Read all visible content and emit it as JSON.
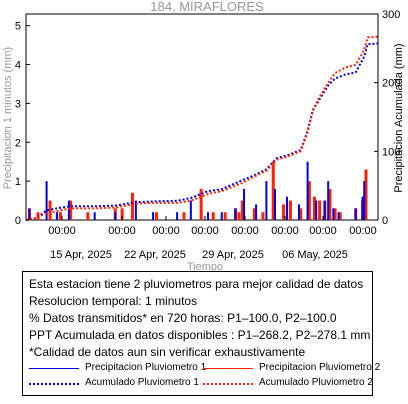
{
  "chart_data": {
    "type": "bar+line",
    "title": "184. MIRAFLORES",
    "xlabel": "Tiempo",
    "ylabel_left": "Precipitacion 1 minutos (mm)",
    "ylabel_right": "Precipitacion Acumulada (mm)",
    "xlim_days": [
      8.5,
      18.75
    ],
    "ylim_left": [
      0,
      5.3
    ],
    "ylim_right": [
      0,
      300
    ],
    "y_ticks_left": [
      "0",
      "1",
      "2",
      "3",
      "4",
      "5"
    ],
    "y_ticks_right": [
      "0",
      "100",
      "200",
      "300"
    ],
    "x_tick_labels_time": [
      "00:00",
      "00:00",
      "00:00",
      "00:00",
      "00:00",
      "00:00",
      "00:00",
      "00:00"
    ],
    "x_tick_labels_date": [
      "15 Apr, 2025",
      "22 Apr, 2025",
      "29 Apr, 2025",
      "06 May, 2025"
    ],
    "series": [
      {
        "name": "Precipitacion Pluviometro 1",
        "color": "#0000dd",
        "bars": [
          [
            8.6,
            0.3
          ],
          [
            9.1,
            1.0
          ],
          [
            9.4,
            0.2
          ],
          [
            9.75,
            0.5
          ],
          [
            10.5,
            0.2
          ],
          [
            11.1,
            0.2
          ],
          [
            11.7,
            0.5
          ],
          [
            12.2,
            0.2
          ],
          [
            12.9,
            0.2
          ],
          [
            13.3,
            0.5
          ],
          [
            13.8,
            0.2
          ],
          [
            14.2,
            0.2
          ],
          [
            14.6,
            0.3
          ],
          [
            14.85,
            0.8
          ],
          [
            15.2,
            0.4
          ],
          [
            15.5,
            1.0
          ],
          [
            15.75,
            0.8
          ],
          [
            16.1,
            0.6
          ],
          [
            16.45,
            0.4
          ],
          [
            16.7,
            1.5
          ],
          [
            16.95,
            0.5
          ],
          [
            17.2,
            0.5
          ],
          [
            17.3,
            1.0
          ],
          [
            17.45,
            0.3
          ],
          [
            17.6,
            0.2
          ],
          [
            18.1,
            0.3
          ],
          [
            18.3,
            0.6
          ],
          [
            18.35,
            1.0
          ]
        ]
      },
      {
        "name": "Precipitacion Pluviometro 2",
        "color": "#ff2200",
        "bars": [
          [
            8.6,
            0.3
          ],
          [
            8.85,
            0.2
          ],
          [
            9.2,
            0.5
          ],
          [
            9.5,
            0.2
          ],
          [
            9.8,
            0.5
          ],
          [
            10.3,
            0.2
          ],
          [
            11.1,
            0.3
          ],
          [
            11.3,
            0.3
          ],
          [
            11.6,
            0.7
          ],
          [
            12.3,
            0.2
          ],
          [
            13.1,
            0.2
          ],
          [
            13.6,
            0.8
          ],
          [
            13.95,
            0.2
          ],
          [
            14.3,
            0.2
          ],
          [
            14.6,
            0.3
          ],
          [
            14.7,
            0.2
          ],
          [
            14.8,
            0.5
          ],
          [
            15.15,
            0.3
          ],
          [
            15.4,
            0.2
          ],
          [
            15.7,
            1.5
          ],
          [
            16.0,
            0.4
          ],
          [
            16.2,
            0.5
          ],
          [
            16.5,
            0.3
          ],
          [
            16.75,
            1.0
          ],
          [
            16.9,
            0.6
          ],
          [
            17.05,
            0.5
          ],
          [
            17.2,
            0.5
          ],
          [
            17.35,
            0.8
          ],
          [
            17.5,
            0.3
          ],
          [
            17.65,
            0.2
          ],
          [
            18.1,
            0.3
          ],
          [
            18.3,
            0.5
          ],
          [
            18.4,
            1.3
          ]
        ]
      },
      {
        "name": "Acumulado Pluviometro 1",
        "color": "#0000dd",
        "cumulative": [
          [
            8.5,
            0
          ],
          [
            8.8,
            3
          ],
          [
            9.1,
            14
          ],
          [
            9.4,
            17
          ],
          [
            9.8,
            20
          ],
          [
            10.5,
            20
          ],
          [
            11.1,
            21
          ],
          [
            11.7,
            26
          ],
          [
            12.2,
            27
          ],
          [
            12.9,
            28
          ],
          [
            13.3,
            32
          ],
          [
            13.8,
            42
          ],
          [
            14.2,
            45
          ],
          [
            14.8,
            58
          ],
          [
            15.1,
            64
          ],
          [
            15.5,
            74
          ],
          [
            15.8,
            90
          ],
          [
            16.1,
            94
          ],
          [
            16.3,
            98
          ],
          [
            16.5,
            102
          ],
          [
            16.7,
            130
          ],
          [
            16.85,
            160
          ],
          [
            17.0,
            172
          ],
          [
            17.3,
            196
          ],
          [
            17.5,
            206
          ],
          [
            17.8,
            212
          ],
          [
            18.1,
            215
          ],
          [
            18.35,
            238
          ],
          [
            18.45,
            256
          ],
          [
            18.75,
            257
          ]
        ]
      },
      {
        "name": "Acumulado Pluviometro 2",
        "color": "#ff2200",
        "cumulative": [
          [
            8.5,
            0
          ],
          [
            8.8,
            3
          ],
          [
            9.1,
            10
          ],
          [
            9.4,
            13
          ],
          [
            9.8,
            17
          ],
          [
            10.5,
            17
          ],
          [
            11.1,
            18
          ],
          [
            11.7,
            24
          ],
          [
            12.2,
            25
          ],
          [
            12.9,
            25
          ],
          [
            13.3,
            28
          ],
          [
            13.8,
            38
          ],
          [
            14.2,
            42
          ],
          [
            14.8,
            54
          ],
          [
            15.1,
            62
          ],
          [
            15.5,
            72
          ],
          [
            15.8,
            88
          ],
          [
            16.1,
            92
          ],
          [
            16.3,
            96
          ],
          [
            16.5,
            100
          ],
          [
            16.7,
            128
          ],
          [
            16.85,
            158
          ],
          [
            17.0,
            175
          ],
          [
            17.3,
            200
          ],
          [
            17.5,
            214
          ],
          [
            17.8,
            222
          ],
          [
            18.1,
            226
          ],
          [
            18.35,
            248
          ],
          [
            18.45,
            266
          ],
          [
            18.75,
            267
          ]
        ]
      }
    ]
  },
  "info": {
    "line1": "Esta estacion tiene 2 pluviometros para mejor calidad de datos",
    "line2": "Resolucion temporal: 1 minutos",
    "line3": "% Datos transmitidos* en 720 horas: P1–100.0, P2–100.0",
    "line4": "PPT Acumulada en datos disponibles : P1–268.2, P2–278.1 mm",
    "line5": "*Calidad de datos aun sin verificar exhaustivamente"
  },
  "legend": {
    "p1_precip": "Precipitacion Pluviometro 1",
    "p2_precip": "Precipitacion Pluviometro 2",
    "p1_acum": "Acumulado Pluviometro 1",
    "p2_acum": "Acumulado Pluviometro 2"
  }
}
